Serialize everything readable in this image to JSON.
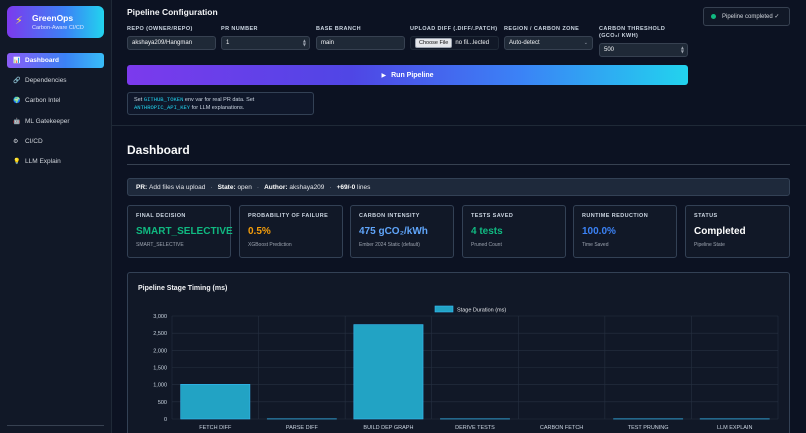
{
  "brand": {
    "title": "GreenOps",
    "subtitle": "Carbon-Aware CI/CD",
    "icon": "lightning-icon"
  },
  "sidebar": {
    "items": [
      {
        "label": "Dashboard",
        "icon": "chart-icon",
        "active": true
      },
      {
        "label": "Dependencies",
        "icon": "link-icon",
        "active": false
      },
      {
        "label": "Carbon Intel",
        "icon": "globe-icon",
        "active": false
      },
      {
        "label": "ML Gatekeeper",
        "icon": "robot-icon",
        "active": false
      },
      {
        "label": "CI/CD",
        "icon": "gear-icon",
        "active": false
      },
      {
        "label": "LLM Explain",
        "icon": "bulb-icon",
        "active": false
      }
    ]
  },
  "config": {
    "title": "Pipeline Configuration",
    "repo": {
      "label": "REPO (OWNER/REPO)",
      "value": "akshaya209/Hangman"
    },
    "pr_number": {
      "label": "PR NUMBER",
      "value": "1"
    },
    "base_branch": {
      "label": "BASE BRANCH",
      "value": "main"
    },
    "upload": {
      "label": "UPLOAD DIFF (.DIFF/.PATCH)",
      "button": "Choose File",
      "status": "no fil...lected"
    },
    "region": {
      "label": "REGION / CARBON ZONE",
      "value": "Auto-detect"
    },
    "threshold": {
      "label": "CARBON THRESHOLD (GCO₂/ KWH)",
      "value": "500"
    },
    "run_label": "Run Pipeline",
    "hint": {
      "pre": "Set ",
      "code1": "GITHUB_TOKEN",
      "mid": " env var for real PR data. Set ",
      "code2": "ANTHROPIC_API_KEY",
      "post": " for LLM explanations."
    }
  },
  "toast": {
    "text": "Pipeline completed ✓"
  },
  "dashboard": {
    "title": "Dashboard",
    "pr": {
      "label": "PR:",
      "title": "Add files via upload",
      "state_label": "State:",
      "state": "open",
      "author_label": "Author:",
      "author": "akshaya209",
      "lines": "+69/-0",
      "lines_suffix": "lines"
    },
    "cards": [
      {
        "label": "FINAL DECISION",
        "value": "SMART_SELECTIVE",
        "sub": "SMART_SELECTIVE",
        "color": "#10b981"
      },
      {
        "label": "PROBABILITY OF FAILURE",
        "value": "0.5%",
        "sub": "XGBoost Prediction",
        "color": "#f59e0b"
      },
      {
        "label": "CARBON INTENSITY",
        "value": "475 gCO₂/kWh",
        "sub": "Ember 2024 Static (default)",
        "color": "#60a5fa"
      },
      {
        "label": "TESTS SAVED",
        "value": "4 tests",
        "sub": "Pruned Count",
        "color": "#10b981"
      },
      {
        "label": "RUNTIME REDUCTION",
        "value": "100.0%",
        "sub": "Time Saved",
        "color": "#3b82f6"
      },
      {
        "label": "STATUS",
        "value": "Completed",
        "sub": "Pipeline State",
        "color": "#ffffff"
      }
    ]
  },
  "chart_data": {
    "type": "bar",
    "title": "Pipeline Stage Timing (ms)",
    "categories": [
      "FETCH DIFF",
      "PARSE DIFF",
      "BUILD DEP GRAPH",
      "DERIVE TESTS",
      "CARBON FETCH",
      "TEST PRUNING",
      "LLM EXPLAIN"
    ],
    "series": [
      {
        "name": "Stage Duration (ms)",
        "values": [
          1010,
          5,
          2750,
          5,
          0,
          5,
          5
        ]
      }
    ],
    "ylim": [
      0,
      3000
    ],
    "yticks": [
      0,
      500,
      1000,
      1500,
      2000,
      2500,
      3000
    ],
    "ytick_labels": [
      "0",
      "500",
      "1,000",
      "1,500",
      "2,000",
      "2,500",
      "3,000"
    ],
    "legend": "top-center",
    "grid": true,
    "bar_color": "#22a3c4"
  }
}
